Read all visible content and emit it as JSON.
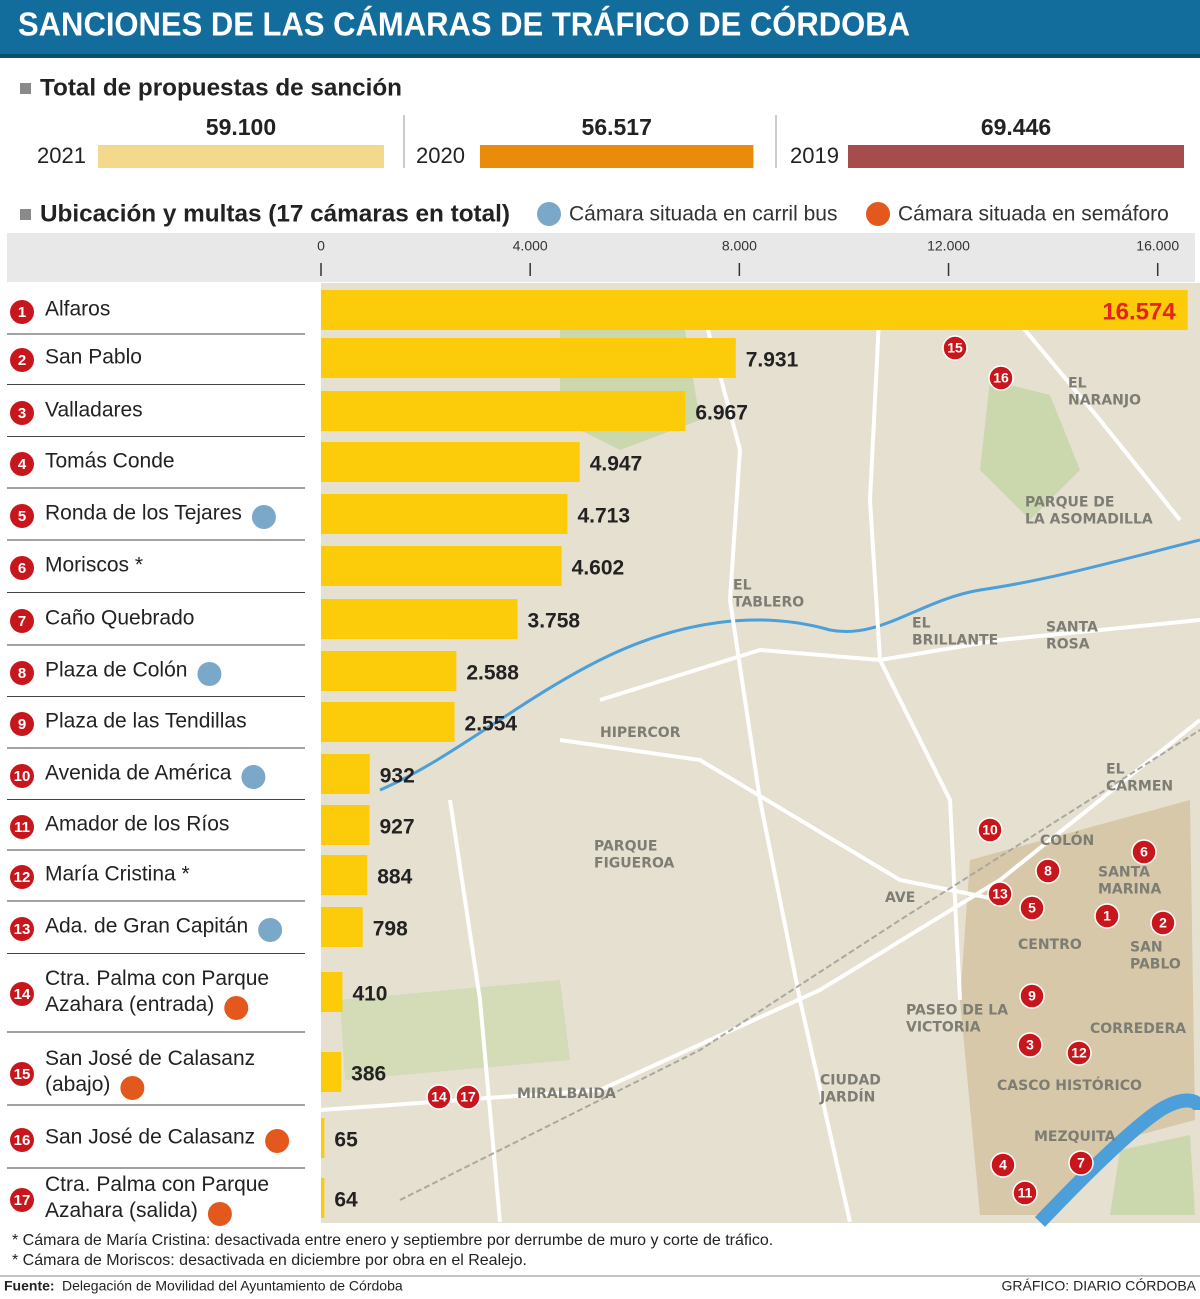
{
  "title": "SANCIONES DE LAS CÁMARAS DE TRÁFICO DE CÓRDOBA",
  "chart_data": [
    {
      "type": "bar",
      "title": "Total de propuestas de sanción",
      "categories": [
        "2021",
        "2020",
        "2019"
      ],
      "values": [
        59100,
        56517,
        69446
      ],
      "value_labels": [
        "59.100",
        "56.517",
        "69.446"
      ],
      "colors": [
        "#f2d98b",
        "#e98b0b",
        "#a64c4c"
      ]
    },
    {
      "type": "hbar",
      "title": "Ubicación y multas (17 cámaras en total)",
      "legend": [
        {
          "name": "Cámara situada en carril bus",
          "color": "#7ba7c9"
        },
        {
          "name": "Cámara situada en semáforo",
          "color": "#e3581c"
        }
      ],
      "numbers": [
        "1",
        "2",
        "3",
        "4",
        "5",
        "6",
        "7",
        "8",
        "9",
        "10",
        "11",
        "12",
        "13",
        "14",
        "15",
        "16",
        "17"
      ],
      "categories": [
        "Alfaros",
        "San Pablo",
        "Valladares",
        "Tomás Conde",
        "Ronda de los Tejares",
        "Moriscos *",
        "Caño Quebrado",
        "Plaza de Colón",
        "Plaza de las Tendillas",
        "Avenida de América",
        "Amador de los Ríos",
        "María Cristina *",
        "Ada. de Gran Capitán",
        "Ctra. Palma con Parque\nAzahara (entrada)",
        "San José de Calasanz\n(abajo)",
        "San José de Calasanz",
        "Ctra. Palma con Parque\nAzahara (salida)"
      ],
      "markers": [
        null,
        null,
        null,
        null,
        0,
        null,
        null,
        0,
        null,
        0,
        null,
        null,
        0,
        1,
        1,
        1,
        1
      ],
      "values": [
        16574,
        7931,
        6967,
        4947,
        4713,
        4602,
        3758,
        2588,
        2554,
        932,
        927,
        884,
        798,
        410,
        386,
        65,
        64
      ],
      "value_labels": [
        "16.574",
        "7.931",
        "6.967",
        "4.947",
        "4.713",
        "4.602",
        "3.758",
        "2.588",
        "2.554",
        "932",
        "927",
        "884",
        "798",
        "410",
        "386",
        "65",
        "64"
      ],
      "color": "#fccb0a",
      "highlight_color": "#e1251b",
      "xlim": [
        0,
        17000
      ],
      "xticks": [
        0,
        {
          "value": 4000,
          "label": "4.000"
        },
        {
          "value": 8000,
          "label": "8.000"
        },
        {
          "value": 12000,
          "label": "12.000"
        },
        {
          "value": 16000,
          "label": "16.000"
        }
      ],
      "map_labels": [
        "EL\nNARANJO",
        "PARQUE DE\nLA ASOMADILLA",
        "EL\nTABLERO",
        "EL\nBRILLANTE",
        "SANTA\nROSA",
        "HIPERCOR",
        "EL\nCARMEN",
        "COLÓN",
        "SANTA\nMARINA",
        "PARQUE\nFIGUEROA",
        "AVE",
        "CENTRO",
        "SAN\nPABLO",
        "PASEO DE LA\nVICTORIA",
        "CORREDERA",
        "CASCO HISTÓRICO",
        "CIUDAD\nJARDÍN",
        "MIRALBAIDA",
        "MEZQUITA"
      ]
    }
  ],
  "footnotes": [
    "* Cámara de María Cristina: desactivada entre enero y septiembre por derrumbe de muro y corte de tráfico.",
    "* Cámara de Moriscos: desactivada en diciembre por obra en el Realejo."
  ],
  "source": {
    "label": "Fuente:",
    "text": "Delegación de Movilidad del Ayuntamiento de Córdoba"
  },
  "credit": "GRÁFICO: DIARIO CÓRDOBA"
}
